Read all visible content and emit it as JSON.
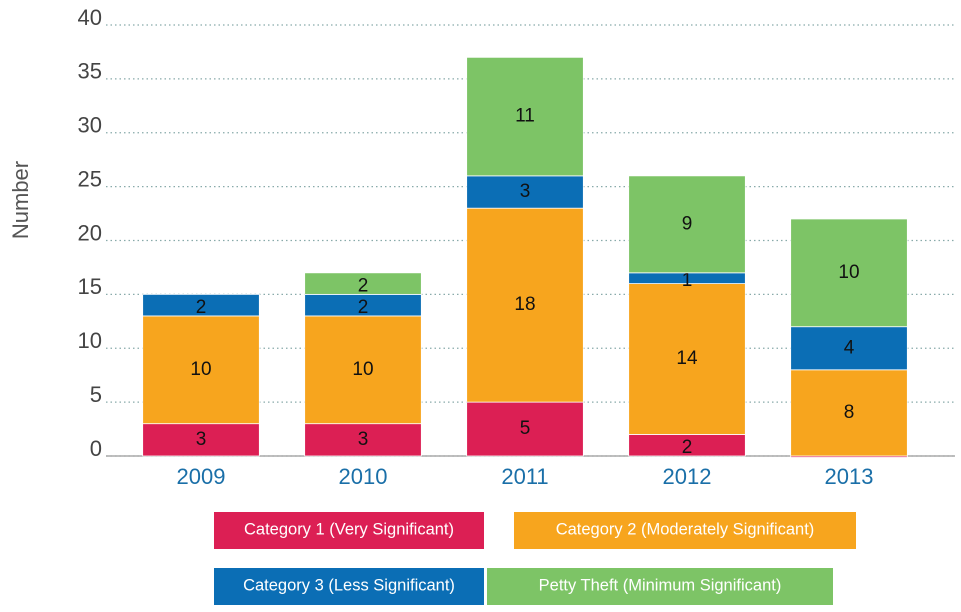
{
  "chart_data": {
    "type": "stacked_bar",
    "ylabel": "Number",
    "categories": [
      "2009",
      "2010",
      "2011",
      "2012",
      "2013"
    ],
    "series": [
      {
        "name": "Category 1 (Very Significant)",
        "color": "#dc1f54",
        "values": [
          3,
          3,
          5,
          2,
          0
        ]
      },
      {
        "name": "Category 2 (Moderately Significant)",
        "color": "#f7a51e",
        "values": [
          10,
          10,
          18,
          14,
          8
        ]
      },
      {
        "name": "Category 3 (Less Significant)",
        "color": "#0b6eb5",
        "values": [
          2,
          2,
          3,
          1,
          4
        ]
      },
      {
        "name": "Petty Theft (Minimum Significant)",
        "color": "#7dc466",
        "values": [
          0,
          2,
          11,
          9,
          10
        ]
      }
    ],
    "ylim": [
      0,
      40
    ],
    "yticks": [
      0,
      5,
      10,
      15,
      20,
      25,
      30,
      35,
      40
    ],
    "grid": true
  }
}
